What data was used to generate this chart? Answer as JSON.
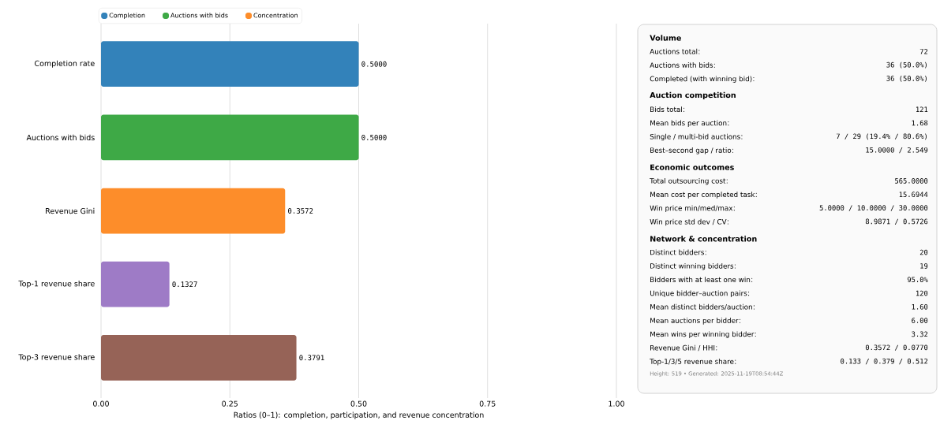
{
  "chart_data": [
    {
      "type": "bar",
      "orientation": "horizontal",
      "categories": [
        "Completion rate",
        "Auctions with bids",
        "Revenue Gini",
        "Top-1 revenue share",
        "Top-3 revenue share"
      ],
      "xlabel": "Ratios (0–1): completion, participation, and revenue concentration",
      "xlim": [
        0,
        1
      ],
      "xticks": [
        {
          "value": 0,
          "label": "0.00"
        },
        {
          "value": 0.25,
          "label": "0.25"
        },
        {
          "value": 0.5,
          "label": "0.50"
        },
        {
          "value": 0.75,
          "label": "0.75"
        },
        {
          "value": 1,
          "label": "1.00"
        }
      ],
      "grid": "x",
      "legend": "top left",
      "series": [
        {
          "name": "Completion",
          "color": "#3382ba",
          "values": [
            0.5,
            null,
            null,
            null,
            null
          ],
          "value_labels": [
            "0.5000",
            null,
            null,
            null,
            null
          ]
        },
        {
          "name": "Auctions with bids",
          "color": "#3ea946",
          "values": [
            null,
            0.5,
            null,
            null,
            null
          ],
          "value_labels": [
            null,
            "0.5000",
            null,
            null,
            null
          ]
        },
        {
          "name": "Concentration",
          "color": "#fd8d2a",
          "values": [
            null,
            null,
            0.3572,
            null,
            null
          ],
          "value_labels": [
            null,
            null,
            "0.3572",
            null,
            null
          ]
        },
        {
          "color": "#9e7bc6",
          "values": [
            null,
            null,
            null,
            0.1327,
            null
          ],
          "value_labels": [
            null,
            null,
            null,
            "0.1327",
            null
          ]
        },
        {
          "color": "#966357",
          "values": [
            null,
            null,
            null,
            null,
            0.3791
          ],
          "value_labels": [
            null,
            null,
            null,
            null,
            "0.3791"
          ]
        }
      ]
    },
    {
      "type": "other",
      "categories": [
        "Volume",
        "Auctions total",
        "Auctions with bids",
        "Completed (with winning bid)",
        "Auction competition",
        "Bids total",
        "Mean bids per auction",
        "Single / multi-bid auctions",
        "Best–second gap / ratio",
        "Economic outcomes",
        "Total outsourcing cost",
        "Mean cost per completed task",
        "Win price min/med/max",
        "Win price std dev / CV",
        "Network & concentration",
        "Distinct bidders",
        "Distinct winning bidders",
        "Bidders with at least one win",
        "Unique bidder–auction pairs",
        "Mean distinct bidders/auction",
        "Mean auctions per bidder",
        "Mean wins per winning bidder",
        "Revenue Gini / HHI",
        "Top-1/3/5 revenue share"
      ],
      "value_labels": [
        null,
        "72",
        "36 (50.0%)",
        "36 (50.0%)",
        null,
        "121",
        "1.68",
        "7 / 29 (19.4% / 80.6%)",
        "15.0000 / 2.549",
        null,
        "565.0000",
        "15.6944",
        "5.0000 / 10.0000 / 30.0000",
        "8.9871 / 0.5726",
        null,
        "20",
        "19",
        "95.0%",
        "120",
        "1.60",
        "6.00",
        "3.32",
        "0.3572 / 0.0770",
        "0.133 / 0.379 / 0.512"
      ],
      "annotations": [
        "Height: 519 • Generated: 2025-11-19T08:54:44Z"
      ]
    }
  ]
}
